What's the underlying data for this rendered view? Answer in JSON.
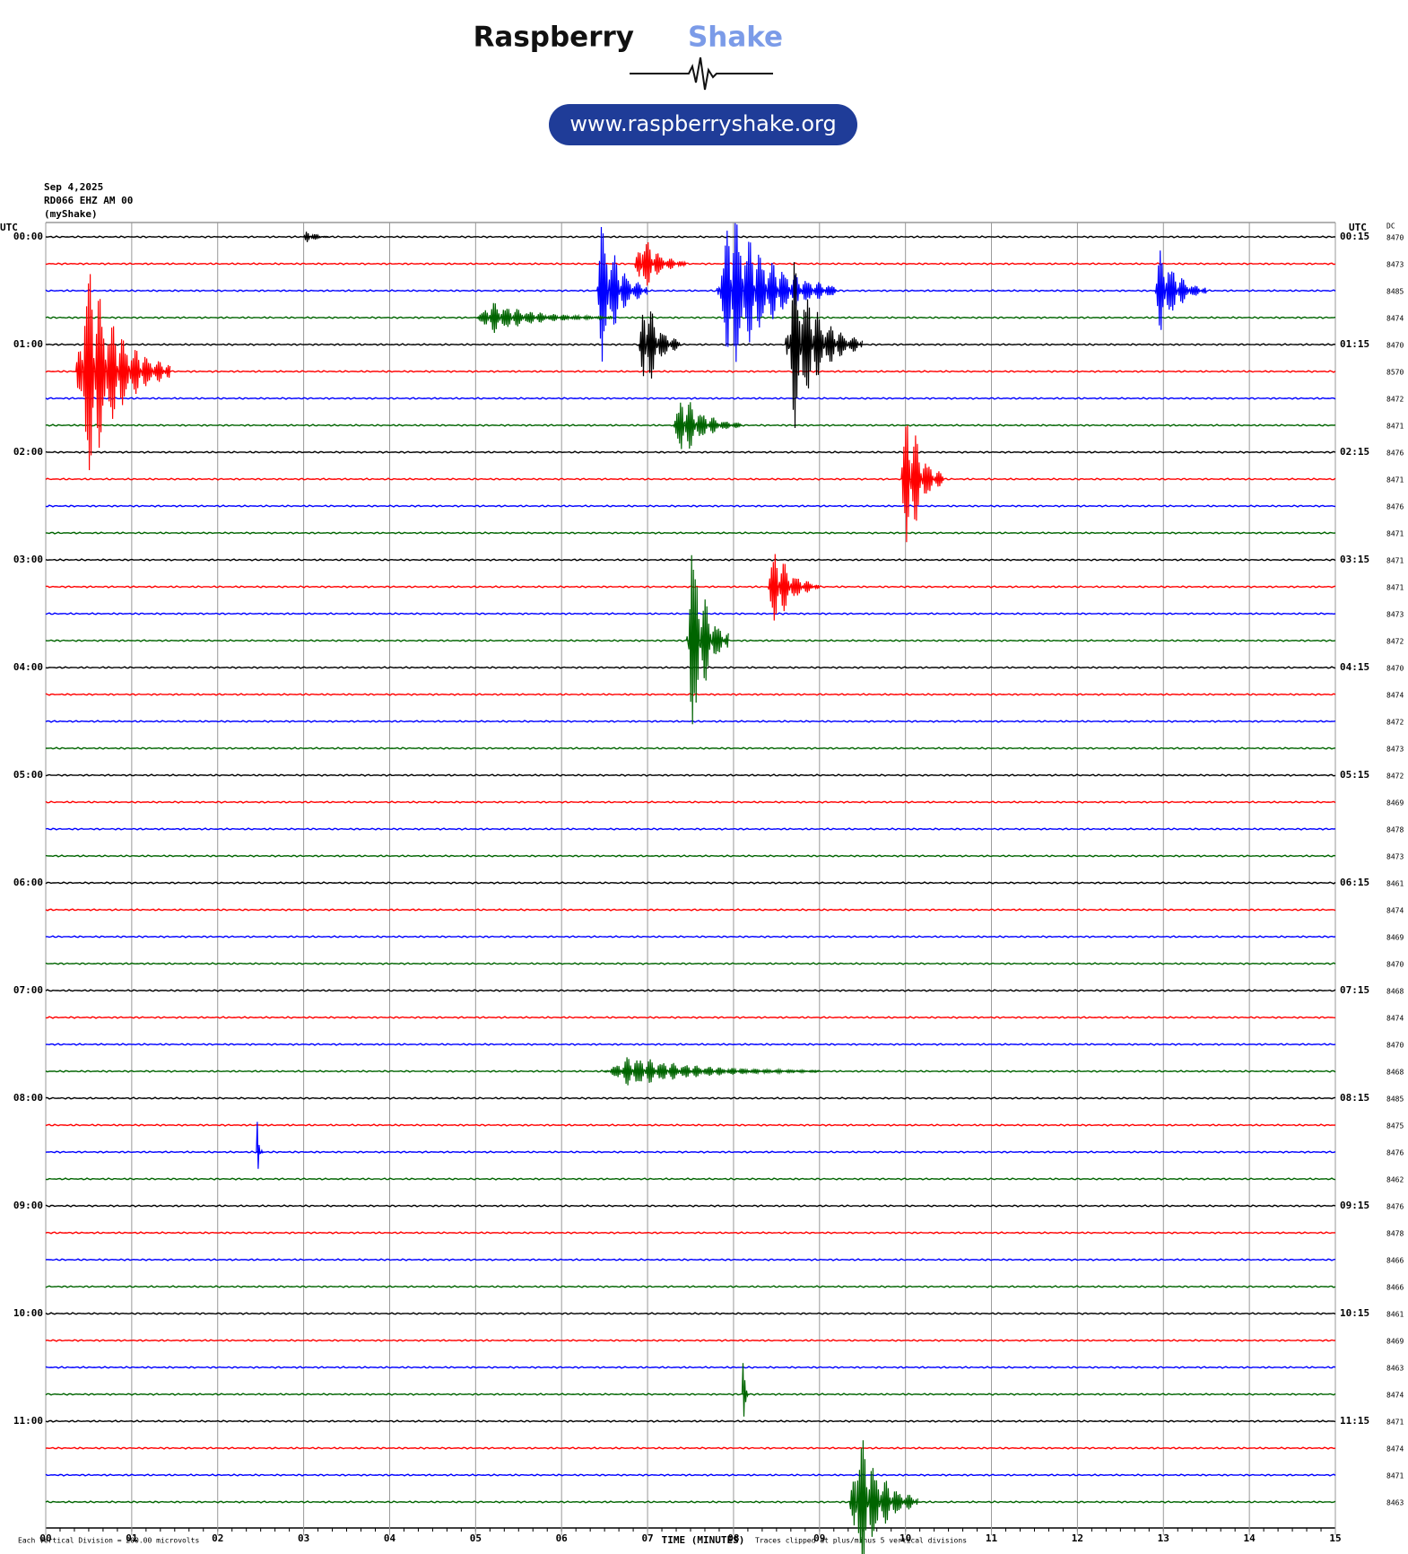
{
  "header": {
    "brand_1": "Raspberry",
    "brand_2": "Shake",
    "url": "www.raspberryshake.org"
  },
  "chart_data": {
    "type": "helicorder",
    "date": "Sep 4,2025",
    "station": "RD066 EHZ AM 00",
    "source": "(myShake)",
    "left_axis_title": "UTC",
    "right_axis_title": "UTC",
    "dc_title": "DC",
    "row_labels_left": [
      "00:00",
      "01:00",
      "02:00",
      "03:00",
      "04:00",
      "05:00",
      "06:00",
      "07:00",
      "08:00",
      "09:00",
      "10:00",
      "11:00"
    ],
    "row_labels_right": [
      "00:15",
      "01:15",
      "02:15",
      "03:15",
      "04:15",
      "05:15",
      "06:15",
      "07:15",
      "08:15",
      "09:15",
      "10:15",
      "11:15"
    ],
    "dc_values": [
      8470,
      8473,
      8485,
      8474,
      8470,
      8570,
      8472,
      8471,
      8476,
      8471,
      8476,
      8471,
      8471,
      8471,
      8473,
      8472,
      8470,
      8474,
      8472,
      8473,
      8472,
      8469,
      8478,
      8473,
      8461,
      8474,
      8469,
      8470,
      8468,
      8474,
      8470,
      8468,
      8485,
      8475,
      8476,
      8462,
      8476,
      8478,
      8466,
      8466,
      8461,
      8469,
      8463,
      8474,
      8471,
      8474,
      8471,
      8463
    ],
    "colors": [
      "#000000",
      "#ff0000",
      "#0000ff",
      "#006400"
    ],
    "xlim": [
      0,
      15
    ],
    "xticks": [
      {
        "value": 0,
        "label": "00"
      },
      {
        "value": 1,
        "label": "01"
      },
      {
        "value": 2,
        "label": "02"
      },
      {
        "value": 3,
        "label": "03"
      },
      {
        "value": 4,
        "label": "04"
      },
      {
        "value": 5,
        "label": "05"
      },
      {
        "value": 6,
        "label": "06"
      },
      {
        "value": 7,
        "label": "07"
      },
      {
        "value": 8,
        "label": "08"
      },
      {
        "value": 9,
        "label": "09"
      },
      10,
      11,
      12,
      13,
      14,
      15
    ],
    "xlabel": "TIME (MINUTES)",
    "scale_note": "Each Vertical Division =  200.00 microvolts",
    "clip_note": "Traces clipped at plus/minus 5 vertical divisions",
    "events": [
      {
        "trace": 0,
        "minute": 3.0,
        "duration": 0.3,
        "amplitude": 0.3
      },
      {
        "trace": 1,
        "minute": 6.85,
        "duration": 0.6,
        "amplitude": 1.3
      },
      {
        "trace": 2,
        "minute": 6.4,
        "duration": 0.6,
        "amplitude": 3.0
      },
      {
        "trace": 2,
        "minute": 7.8,
        "duration": 1.4,
        "amplitude": 3.3
      },
      {
        "trace": 2,
        "minute": 12.9,
        "duration": 0.6,
        "amplitude": 1.8
      },
      {
        "trace": 3,
        "minute": 5.0,
        "duration": 1.6,
        "amplitude": 0.6
      },
      {
        "trace": 4,
        "minute": 6.9,
        "duration": 0.5,
        "amplitude": 2.2
      },
      {
        "trace": 4,
        "minute": 8.6,
        "duration": 0.9,
        "amplitude": 3.3
      },
      {
        "trace": 5,
        "minute": 0.35,
        "duration": 1.1,
        "amplitude": 4.5
      },
      {
        "trace": 7,
        "minute": 7.3,
        "duration": 0.8,
        "amplitude": 1.3
      },
      {
        "trace": 9,
        "minute": 9.95,
        "duration": 0.5,
        "amplitude": 3.3
      },
      {
        "trace": 13,
        "minute": 8.4,
        "duration": 0.6,
        "amplitude": 1.7
      },
      {
        "trace": 15,
        "minute": 7.45,
        "duration": 0.5,
        "amplitude": 4.4
      },
      {
        "trace": 31,
        "minute": 6.5,
        "duration": 2.5,
        "amplitude": 0.6
      },
      {
        "trace": 34,
        "minute": 2.45,
        "duration": 0.08,
        "amplitude": 1.8
      },
      {
        "trace": 43,
        "minute": 8.1,
        "duration": 0.08,
        "amplitude": 1.3
      },
      {
        "trace": 47,
        "minute": 9.35,
        "duration": 0.8,
        "amplitude": 3.0
      }
    ]
  }
}
